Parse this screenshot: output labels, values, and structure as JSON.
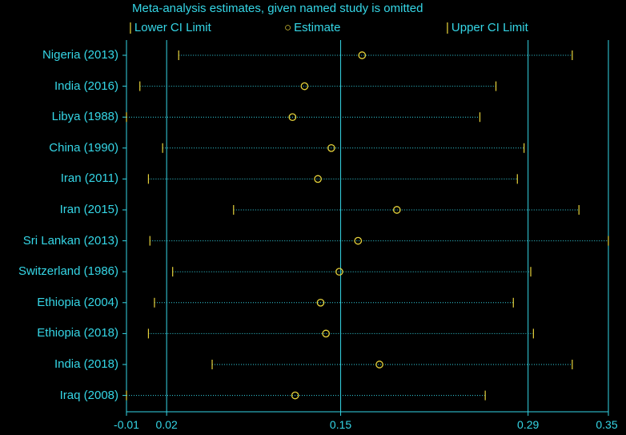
{
  "chart_data": {
    "type": "forest",
    "title": "Meta-analysis estimates, given named study is omitted",
    "legend": {
      "lower": "Lower CI Limit",
      "estimate": "Estimate",
      "upper": "Upper CI Limit",
      "placement": "top"
    },
    "xlim": [
      -0.01,
      0.35
    ],
    "x_ticks": [
      -0.01,
      0.02,
      0.15,
      0.29,
      0.35
    ],
    "x_tick_labels": [
      "-0.01",
      "0.02",
      "0.15",
      "0.29",
      "0.35"
    ],
    "reference_lines": [
      0.02,
      0.15,
      0.29
    ],
    "studies": [
      {
        "label": "Nigeria (2013)",
        "lower": 0.029,
        "estimate": 0.166,
        "upper": 0.323
      },
      {
        "label": "India (2016)",
        "lower": 0.0,
        "estimate": 0.123,
        "upper": 0.266
      },
      {
        "label": "Libya (1988)",
        "lower": -0.01,
        "estimate": 0.114,
        "upper": 0.254
      },
      {
        "label": "China (1990)",
        "lower": 0.017,
        "estimate": 0.143,
        "upper": 0.287
      },
      {
        "label": "Iran (2011)",
        "lower": 0.0064,
        "estimate": 0.133,
        "upper": 0.282
      },
      {
        "label": "Iran (2015)",
        "lower": 0.07,
        "estimate": 0.192,
        "upper": 0.328
      },
      {
        "label": "Sri Lankan (2013)",
        "lower": 0.0075,
        "estimate": 0.163,
        "upper": 0.35
      },
      {
        "label": "Switzerland (1986)",
        "lower": 0.0245,
        "estimate": 0.149,
        "upper": 0.292
      },
      {
        "label": "Ethiopia (2004)",
        "lower": 0.0109,
        "estimate": 0.135,
        "upper": 0.279
      },
      {
        "label": "Ethiopia (2018)",
        "lower": 0.0064,
        "estimate": 0.139,
        "upper": 0.294
      },
      {
        "label": "India (2018)",
        "lower": 0.054,
        "estimate": 0.179,
        "upper": 0.323
      },
      {
        "label": "Iraq (2008)",
        "lower": -0.01,
        "estimate": 0.116,
        "upper": 0.258
      }
    ]
  },
  "colors": {
    "background": "#000000",
    "axis": "#35d6e6",
    "markers": "#e6d23a",
    "dotted_line": "#35d6e6"
  }
}
